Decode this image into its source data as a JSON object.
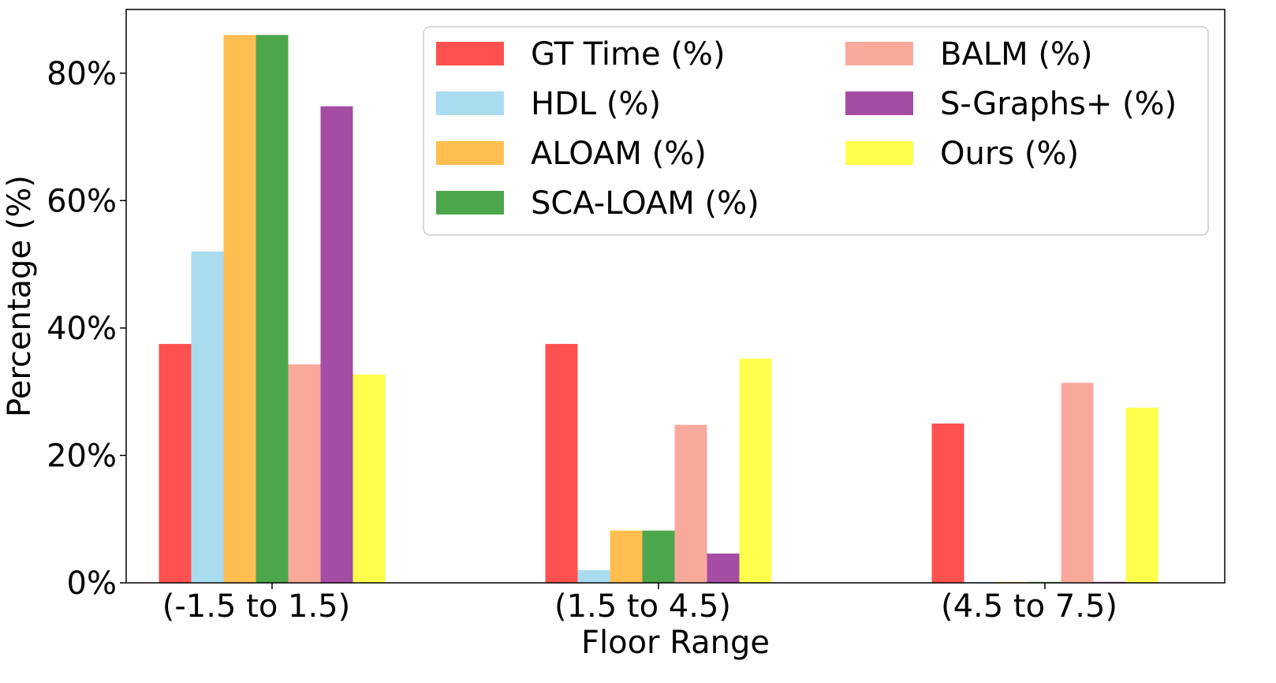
{
  "chart_data": {
    "type": "bar",
    "title": "",
    "xlabel": "Floor Range",
    "ylabel": "Percentage (%)",
    "ylim": [
      0,
      90
    ],
    "yticks": [
      0,
      20,
      40,
      60,
      80
    ],
    "ytick_labels": [
      "0%",
      "20%",
      "40%",
      "60%",
      "80%"
    ],
    "categories": [
      "(-1.5 to 1.5)",
      "(1.5 to 4.5)",
      "(4.5 to 7.5)"
    ],
    "grid": false,
    "legend_position": "top-right",
    "series": [
      {
        "name": "GT Time (%)",
        "color": "#ff5050",
        "values": [
          37.5,
          37.5,
          25.0
        ]
      },
      {
        "name": "HDL (%)",
        "color": "#a9dcef",
        "values": [
          52.0,
          2.0,
          0.0
        ]
      },
      {
        "name": "ALOAM (%)",
        "color": "#ffbf50",
        "values": [
          86.0,
          8.2,
          0.0
        ]
      },
      {
        "name": "SCA-LOAM (%)",
        "color": "#4ca64c",
        "values": [
          86.0,
          8.2,
          0.0
        ]
      },
      {
        "name": "BALM (%)",
        "color": "#f9a89c",
        "values": [
          34.3,
          24.8,
          31.4
        ]
      },
      {
        "name": "S-Graphs+ (%)",
        "color": "#a54ca5",
        "values": [
          74.8,
          4.6,
          0.0
        ]
      },
      {
        "name": "Ours (%)",
        "color": "#ffff4c",
        "values": [
          32.7,
          35.2,
          27.5
        ]
      }
    ]
  }
}
